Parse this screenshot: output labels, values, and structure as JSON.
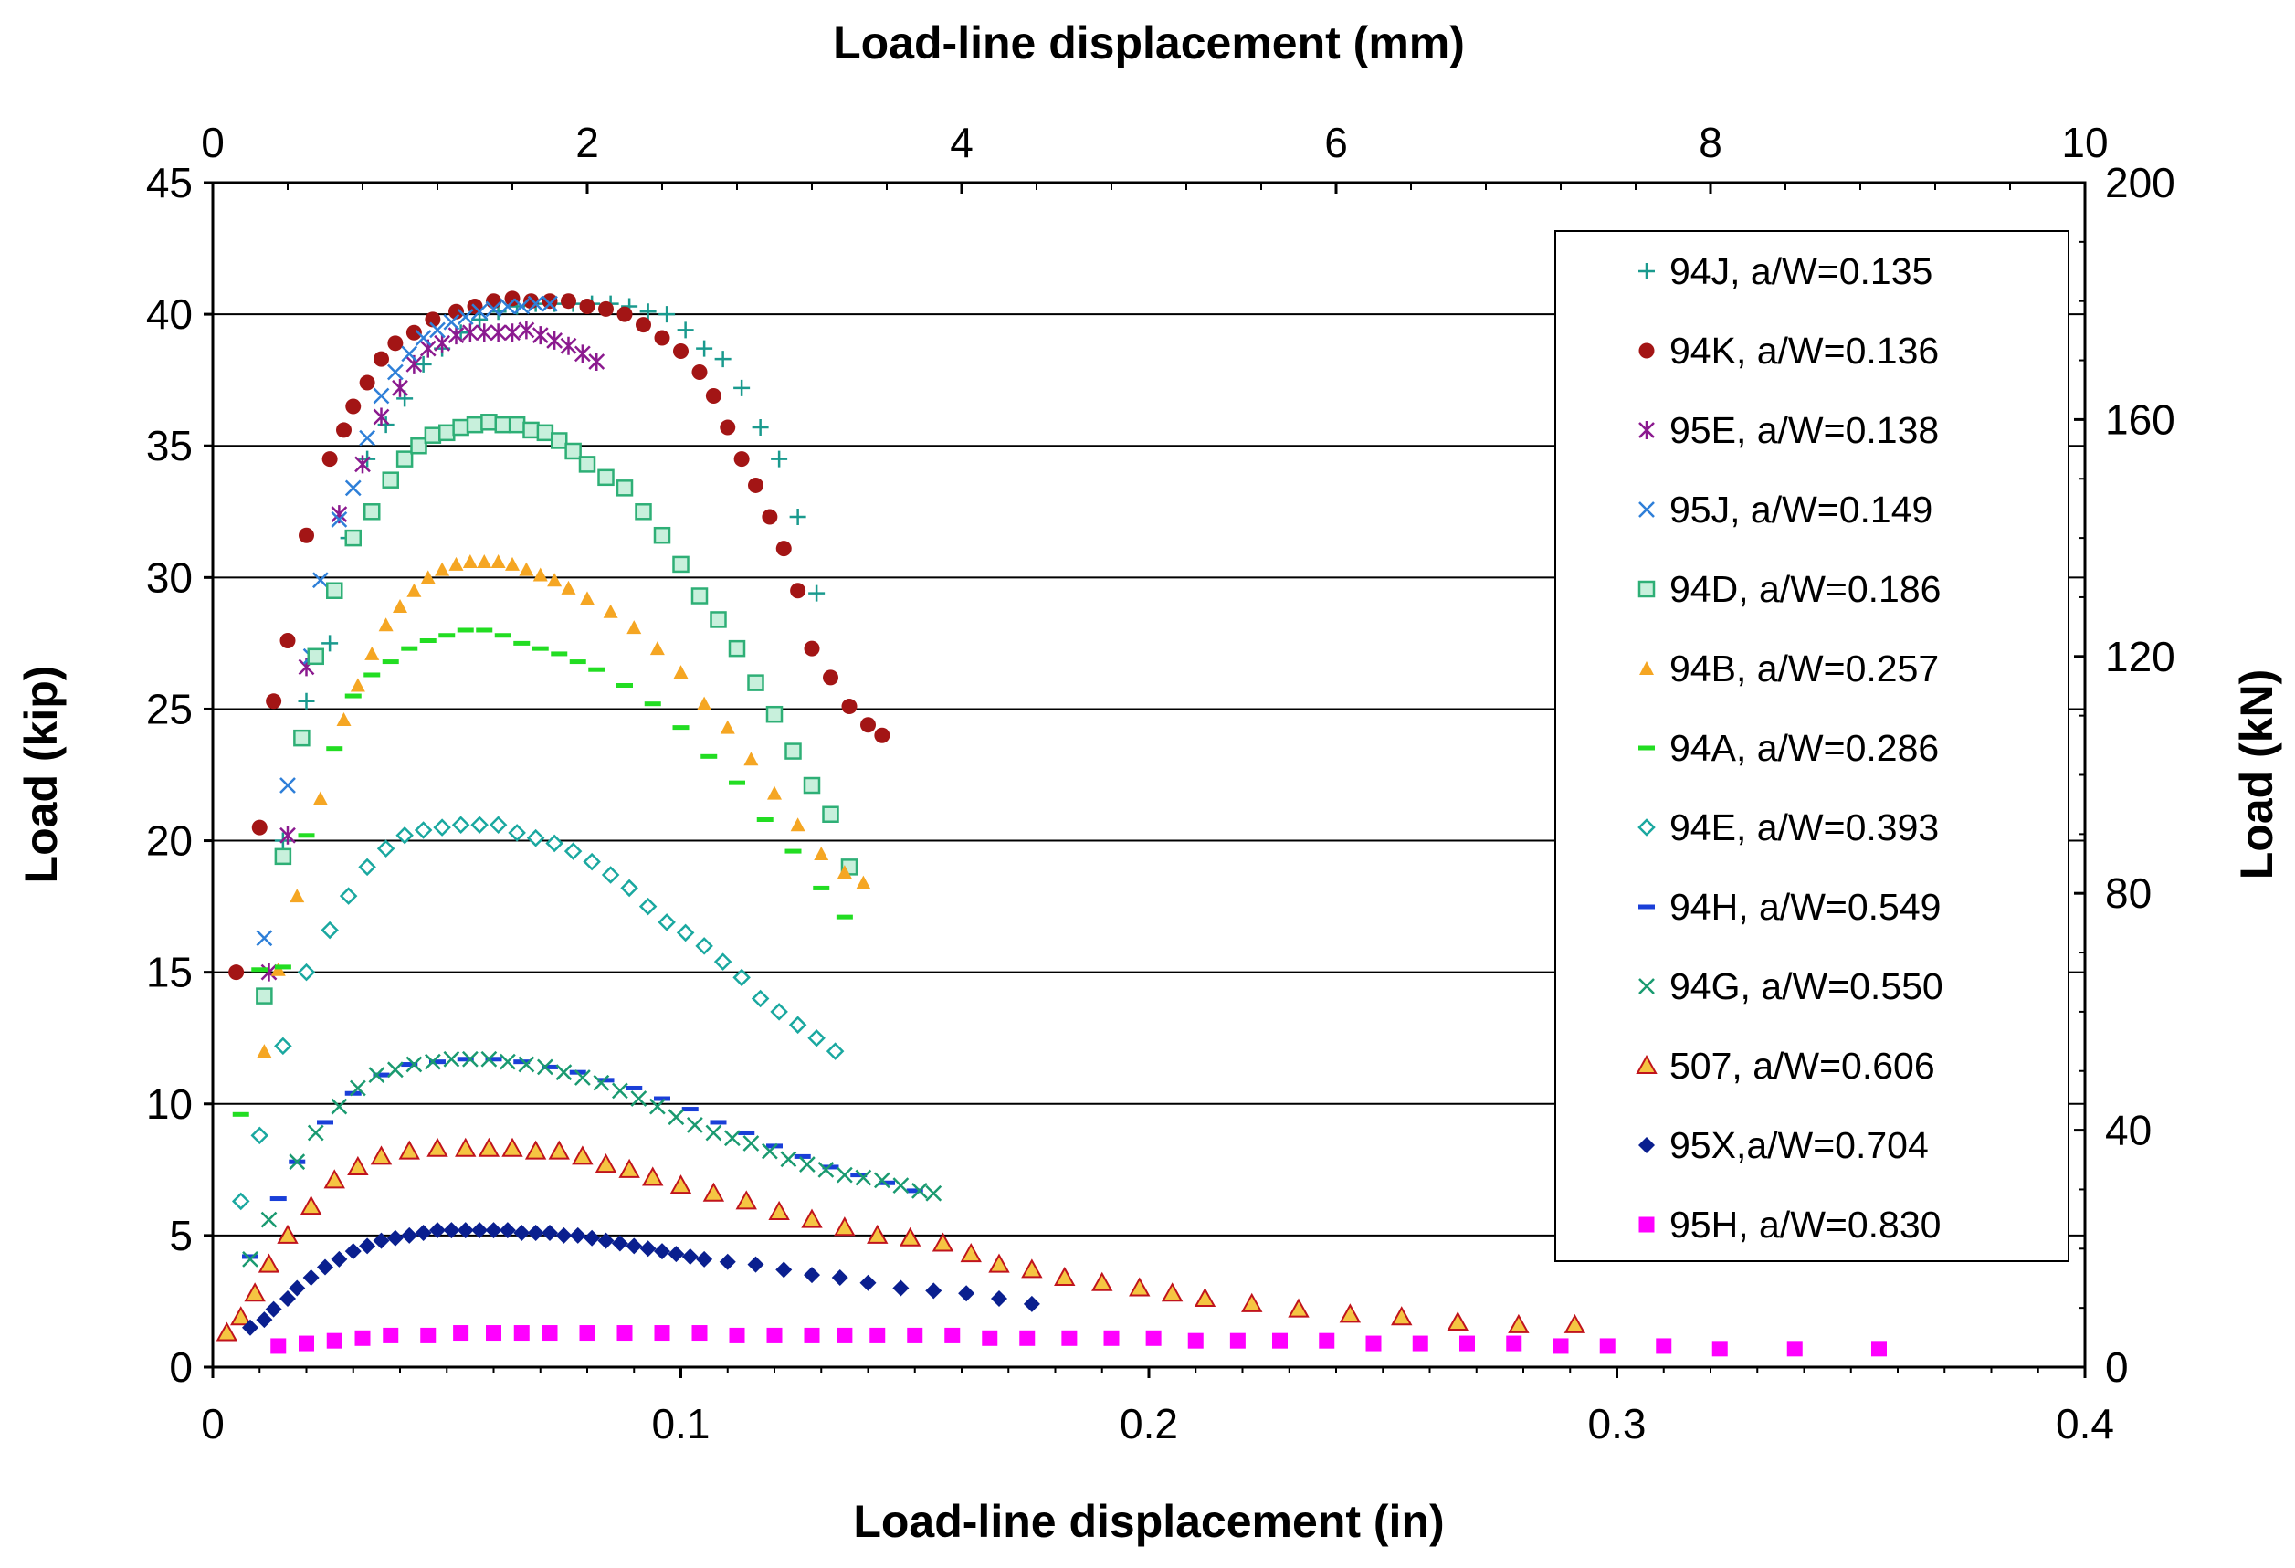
{
  "chart_data": {
    "type": "scatter",
    "xlabel": "Load-line displacement (in)",
    "ylabel": "Load (kip)",
    "x2label": "Load-line displacement (mm)",
    "y2label": "Load (kN)",
    "xlim": [
      0,
      0.4
    ],
    "ylim": [
      0,
      45
    ],
    "x2lim": [
      0,
      10
    ],
    "y2lim": [
      0,
      200
    ],
    "xticks": [
      "0",
      "0.1",
      "0.2",
      "0.3",
      "0.4"
    ],
    "yticks": [
      "0",
      "5",
      "10",
      "15",
      "20",
      "25",
      "30",
      "35",
      "40",
      "45"
    ],
    "x2ticks": [
      "0",
      "2",
      "4",
      "6",
      "8",
      "10"
    ],
    "y2ticks": [
      "0",
      "40",
      "80",
      "120",
      "160",
      "200"
    ],
    "grid": "horizontal",
    "legend_position": "right",
    "series": [
      {
        "name": "94J, a/W=0.135",
        "marker": "plus",
        "color": "#1A9A8E",
        "x": [
          0.015,
          0.02,
          0.025,
          0.029,
          0.033,
          0.037,
          0.041,
          0.045,
          0.049,
          0.053,
          0.057,
          0.061,
          0.065,
          0.069,
          0.073,
          0.077,
          0.081,
          0.085,
          0.089,
          0.093,
          0.097,
          0.101,
          0.105,
          0.109,
          0.113,
          0.117,
          0.121,
          0.125,
          0.129
        ],
        "y": [
          20.0,
          25.3,
          27.5,
          31.5,
          34.5,
          35.8,
          36.8,
          38.1,
          38.7,
          39.3,
          39.8,
          40.1,
          40.3,
          40.4,
          40.4,
          40.4,
          40.4,
          40.4,
          40.3,
          40.1,
          40.0,
          39.4,
          38.7,
          38.3,
          37.2,
          35.7,
          34.5,
          32.3,
          29.4
        ]
      },
      {
        "name": "94K, a/W=0.136",
        "marker": "circle",
        "color": "#A31515",
        "x": [
          0.005,
          0.01,
          0.013,
          0.016,
          0.02,
          0.025,
          0.028,
          0.03,
          0.033,
          0.036,
          0.039,
          0.043,
          0.047,
          0.052,
          0.056,
          0.06,
          0.064,
          0.068,
          0.072,
          0.076,
          0.08,
          0.084,
          0.088,
          0.092,
          0.096,
          0.1,
          0.104,
          0.107,
          0.11,
          0.113,
          0.116,
          0.119,
          0.122,
          0.125,
          0.128,
          0.132,
          0.136,
          0.14,
          0.143
        ],
        "y": [
          15.0,
          20.5,
          25.3,
          27.6,
          31.6,
          34.5,
          35.6,
          36.5,
          37.4,
          38.3,
          38.9,
          39.3,
          39.8,
          40.1,
          40.3,
          40.5,
          40.6,
          40.5,
          40.5,
          40.5,
          40.3,
          40.2,
          40.0,
          39.6,
          39.1,
          38.6,
          37.8,
          36.9,
          35.7,
          34.5,
          33.5,
          32.3,
          31.1,
          29.5,
          27.3,
          26.2,
          25.1,
          24.4,
          24.0
        ]
      },
      {
        "name": "95E, a/W=0.138",
        "marker": "star",
        "color": "#8B1A8F",
        "x": [
          0.012,
          0.016,
          0.02,
          0.027,
          0.032,
          0.036,
          0.04,
          0.043,
          0.046,
          0.049,
          0.052,
          0.055,
          0.058,
          0.061,
          0.064,
          0.067,
          0.07,
          0.073,
          0.076,
          0.079,
          0.082
        ],
        "y": [
          15.0,
          20.2,
          26.6,
          32.4,
          34.3,
          36.1,
          37.2,
          38.1,
          38.7,
          38.9,
          39.2,
          39.3,
          39.3,
          39.3,
          39.3,
          39.4,
          39.2,
          39.0,
          38.8,
          38.5,
          38.2
        ]
      },
      {
        "name": "95J, a/W=0.149",
        "marker": "x",
        "color": "#2E7FD8",
        "x": [
          0.011,
          0.016,
          0.021,
          0.023,
          0.027,
          0.03,
          0.033,
          0.036,
          0.039,
          0.042,
          0.045,
          0.048,
          0.051,
          0.054,
          0.057,
          0.06,
          0.063,
          0.066,
          0.069,
          0.072
        ],
        "y": [
          16.3,
          22.1,
          27.0,
          29.9,
          32.2,
          33.4,
          35.3,
          36.9,
          37.8,
          38.5,
          39.1,
          39.4,
          39.7,
          39.9,
          40.1,
          40.2,
          40.3,
          40.3,
          40.4,
          40.4
        ]
      },
      {
        "name": "94D, a/W=0.186",
        "marker": "square-open",
        "color": "#2EAF76",
        "x": [
          0.011,
          0.015,
          0.019,
          0.022,
          0.026,
          0.03,
          0.034,
          0.038,
          0.041,
          0.044,
          0.047,
          0.05,
          0.053,
          0.056,
          0.059,
          0.062,
          0.065,
          0.068,
          0.071,
          0.074,
          0.077,
          0.08,
          0.084,
          0.088,
          0.092,
          0.096,
          0.1,
          0.104,
          0.108,
          0.112,
          0.116,
          0.12,
          0.124,
          0.128,
          0.132,
          0.136
        ],
        "y": [
          14.1,
          19.4,
          23.9,
          27.0,
          29.5,
          31.5,
          32.5,
          33.7,
          34.5,
          35.0,
          35.4,
          35.5,
          35.7,
          35.8,
          35.9,
          35.8,
          35.8,
          35.6,
          35.5,
          35.2,
          34.8,
          34.3,
          33.8,
          33.4,
          32.5,
          31.6,
          30.5,
          29.3,
          28.4,
          27.3,
          26.0,
          24.8,
          23.4,
          22.1,
          21.0,
          19.0
        ]
      },
      {
        "name": "94B, a/W=0.257",
        "marker": "triangle",
        "color": "#F5A623",
        "x": [
          0.011,
          0.014,
          0.018,
          0.023,
          0.028,
          0.031,
          0.034,
          0.037,
          0.04,
          0.043,
          0.046,
          0.049,
          0.052,
          0.055,
          0.058,
          0.061,
          0.064,
          0.067,
          0.07,
          0.073,
          0.076,
          0.08,
          0.085,
          0.09,
          0.095,
          0.1,
          0.105,
          0.11,
          0.115,
          0.12,
          0.125,
          0.13,
          0.135,
          0.139
        ],
        "y": [
          12.0,
          15.1,
          17.9,
          21.6,
          24.6,
          25.9,
          27.1,
          28.2,
          28.9,
          29.5,
          30.0,
          30.3,
          30.5,
          30.6,
          30.6,
          30.6,
          30.5,
          30.3,
          30.1,
          29.9,
          29.6,
          29.2,
          28.7,
          28.1,
          27.3,
          26.4,
          25.2,
          24.3,
          23.1,
          21.8,
          20.6,
          19.5,
          18.8,
          18.4
        ]
      },
      {
        "name": "94A, a/W=0.286",
        "marker": "dash",
        "color": "#22DD22",
        "x": [
          0.006,
          0.01,
          0.015,
          0.02,
          0.026,
          0.03,
          0.034,
          0.038,
          0.042,
          0.046,
          0.05,
          0.054,
          0.058,
          0.062,
          0.066,
          0.07,
          0.074,
          0.078,
          0.082,
          0.088,
          0.094,
          0.1,
          0.106,
          0.112,
          0.118,
          0.124,
          0.13,
          0.135
        ],
        "y": [
          9.6,
          15.1,
          15.2,
          20.2,
          23.5,
          25.5,
          26.3,
          26.8,
          27.3,
          27.6,
          27.8,
          28.0,
          28.0,
          27.8,
          27.5,
          27.3,
          27.1,
          26.8,
          26.5,
          25.9,
          25.2,
          24.3,
          23.2,
          22.2,
          20.8,
          19.6,
          18.2,
          17.1
        ]
      },
      {
        "name": "94E, a/W=0.393",
        "marker": "diamond-open",
        "color": "#1AA8A0",
        "x": [
          0.006,
          0.01,
          0.015,
          0.02,
          0.025,
          0.029,
          0.033,
          0.037,
          0.041,
          0.045,
          0.049,
          0.053,
          0.057,
          0.061,
          0.065,
          0.069,
          0.073,
          0.077,
          0.081,
          0.085,
          0.089,
          0.093,
          0.097,
          0.101,
          0.105,
          0.109,
          0.113,
          0.117,
          0.121,
          0.125,
          0.129,
          0.133
        ],
        "y": [
          6.3,
          8.8,
          12.2,
          15.0,
          16.6,
          17.9,
          19.0,
          19.7,
          20.2,
          20.4,
          20.5,
          20.6,
          20.6,
          20.6,
          20.3,
          20.1,
          19.9,
          19.6,
          19.2,
          18.7,
          18.2,
          17.5,
          16.9,
          16.5,
          16.0,
          15.4,
          14.8,
          14.0,
          13.5,
          13.0,
          12.5,
          12.0
        ]
      },
      {
        "name": "94H, a/W=0.549",
        "marker": "dash",
        "color": "#1A3FD8",
        "x": [
          0.008,
          0.014,
          0.018,
          0.024,
          0.03,
          0.036,
          0.042,
          0.048,
          0.054,
          0.06,
          0.066,
          0.072,
          0.078,
          0.084,
          0.09,
          0.096,
          0.102,
          0.108,
          0.114,
          0.12,
          0.126,
          0.132,
          0.138,
          0.144,
          0.15
        ],
        "y": [
          4.2,
          6.4,
          7.8,
          9.3,
          10.4,
          11.1,
          11.5,
          11.6,
          11.7,
          11.7,
          11.6,
          11.4,
          11.2,
          10.9,
          10.6,
          10.2,
          9.8,
          9.3,
          8.9,
          8.4,
          8.0,
          7.6,
          7.3,
          7.0,
          6.7
        ]
      },
      {
        "name": "94G, a/W=0.550",
        "marker": "x",
        "color": "#1A9A70",
        "x": [
          0.008,
          0.012,
          0.018,
          0.022,
          0.027,
          0.031,
          0.035,
          0.039,
          0.043,
          0.047,
          0.051,
          0.055,
          0.059,
          0.063,
          0.067,
          0.071,
          0.075,
          0.079,
          0.083,
          0.087,
          0.091,
          0.095,
          0.099,
          0.103,
          0.107,
          0.111,
          0.115,
          0.119,
          0.123,
          0.127,
          0.131,
          0.135,
          0.139,
          0.143,
          0.147,
          0.151,
          0.154
        ],
        "y": [
          4.1,
          5.6,
          7.8,
          8.9,
          9.9,
          10.6,
          11.1,
          11.3,
          11.5,
          11.6,
          11.7,
          11.7,
          11.7,
          11.6,
          11.5,
          11.4,
          11.2,
          11.0,
          10.8,
          10.5,
          10.2,
          9.9,
          9.5,
          9.2,
          8.9,
          8.7,
          8.5,
          8.2,
          7.9,
          7.7,
          7.5,
          7.3,
          7.2,
          7.1,
          6.9,
          6.7,
          6.6
        ]
      },
      {
        "name": "507, a/W=0.606",
        "marker": "triangle-open",
        "color": "#C0141C",
        "x": [
          0.003,
          0.006,
          0.009,
          0.012,
          0.016,
          0.021,
          0.026,
          0.031,
          0.036,
          0.042,
          0.048,
          0.054,
          0.059,
          0.064,
          0.069,
          0.074,
          0.079,
          0.084,
          0.089,
          0.094,
          0.1,
          0.107,
          0.114,
          0.121,
          0.128,
          0.135,
          0.142,
          0.149,
          0.156,
          0.162,
          0.168,
          0.175,
          0.182,
          0.19,
          0.198,
          0.205,
          0.212,
          0.222,
          0.232,
          0.243,
          0.254,
          0.266,
          0.279,
          0.291
        ],
        "y": [
          1.3,
          1.9,
          2.8,
          3.9,
          5.0,
          6.1,
          7.1,
          7.6,
          8.0,
          8.2,
          8.3,
          8.3,
          8.3,
          8.3,
          8.2,
          8.2,
          8.0,
          7.7,
          7.5,
          7.2,
          6.9,
          6.6,
          6.3,
          5.9,
          5.6,
          5.3,
          5.0,
          4.9,
          4.7,
          4.3,
          3.9,
          3.7,
          3.4,
          3.2,
          3.0,
          2.8,
          2.6,
          2.4,
          2.2,
          2.0,
          1.9,
          1.7,
          1.6,
          1.6
        ]
      },
      {
        "name": "95X,a/W=0.704",
        "marker": "diamond",
        "color": "#0A1F8F",
        "x": [
          0.008,
          0.011,
          0.013,
          0.016,
          0.018,
          0.021,
          0.024,
          0.027,
          0.03,
          0.033,
          0.036,
          0.039,
          0.042,
          0.045,
          0.048,
          0.051,
          0.054,
          0.057,
          0.06,
          0.063,
          0.066,
          0.069,
          0.072,
          0.075,
          0.078,
          0.081,
          0.084,
          0.087,
          0.09,
          0.093,
          0.096,
          0.099,
          0.102,
          0.105,
          0.11,
          0.116,
          0.122,
          0.128,
          0.134,
          0.14,
          0.147,
          0.154,
          0.161,
          0.168,
          0.175
        ],
        "y": [
          1.5,
          1.8,
          2.2,
          2.6,
          3.0,
          3.4,
          3.8,
          4.1,
          4.4,
          4.6,
          4.8,
          4.9,
          5.0,
          5.1,
          5.2,
          5.2,
          5.2,
          5.2,
          5.2,
          5.2,
          5.1,
          5.1,
          5.1,
          5.0,
          5.0,
          4.9,
          4.8,
          4.7,
          4.6,
          4.5,
          4.4,
          4.3,
          4.2,
          4.1,
          4.0,
          3.9,
          3.7,
          3.5,
          3.4,
          3.2,
          3.0,
          2.9,
          2.8,
          2.6,
          2.4
        ]
      },
      {
        "name": "95H, a/W=0.830",
        "marker": "square",
        "color": "#FF00FF",
        "x": [
          0.014,
          0.02,
          0.026,
          0.032,
          0.038,
          0.046,
          0.053,
          0.06,
          0.066,
          0.072,
          0.08,
          0.088,
          0.096,
          0.104,
          0.112,
          0.12,
          0.128,
          0.135,
          0.142,
          0.15,
          0.158,
          0.166,
          0.174,
          0.183,
          0.192,
          0.201,
          0.21,
          0.219,
          0.228,
          0.238,
          0.248,
          0.258,
          0.268,
          0.278,
          0.288,
          0.298,
          0.31,
          0.322,
          0.338,
          0.356
        ],
        "y": [
          0.8,
          0.9,
          1.0,
          1.1,
          1.2,
          1.2,
          1.3,
          1.3,
          1.3,
          1.3,
          1.3,
          1.3,
          1.3,
          1.3,
          1.2,
          1.2,
          1.2,
          1.2,
          1.2,
          1.2,
          1.2,
          1.1,
          1.1,
          1.1,
          1.1,
          1.1,
          1.0,
          1.0,
          1.0,
          1.0,
          0.9,
          0.9,
          0.9,
          0.9,
          0.8,
          0.8,
          0.8,
          0.7,
          0.7,
          0.7
        ]
      }
    ]
  }
}
